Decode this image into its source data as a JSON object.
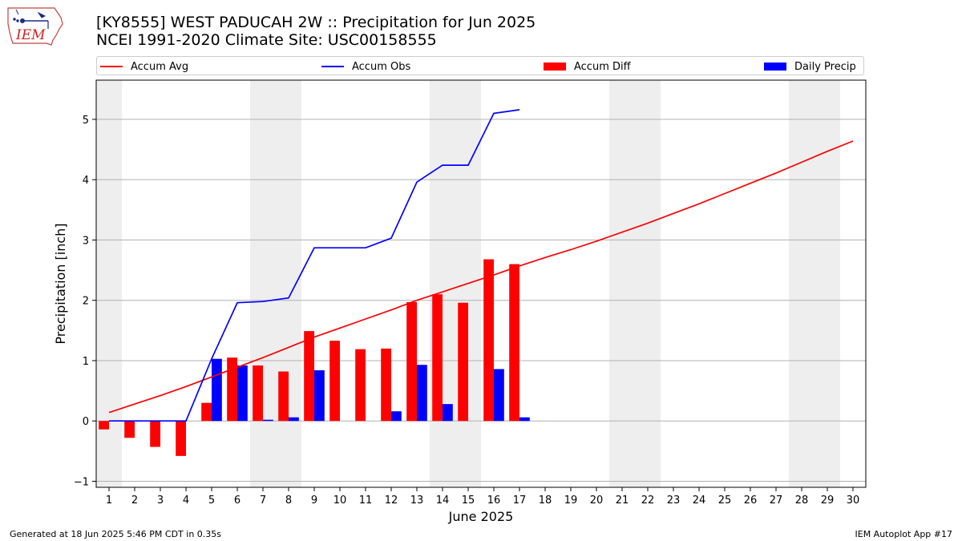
{
  "title": {
    "line1": "[KY8555] WEST PADUCAH 2W :: Precipitation for Jun 2025",
    "line2": "NCEI 1991-2020 Climate Site: USC00158555"
  },
  "logo": {
    "text": "IEM",
    "icon": "iowa-state-outline-logo-icon"
  },
  "legend": {
    "items": [
      {
        "label": "Accum Avg",
        "color": "#ff0000",
        "kind": "line"
      },
      {
        "label": "Accum Obs",
        "color": "#0000ff",
        "kind": "line"
      },
      {
        "label": "Accum Diff",
        "color": "#ff0000",
        "kind": "box"
      },
      {
        "label": "Daily Precip",
        "color": "#0000ff",
        "kind": "box"
      }
    ]
  },
  "footer": {
    "left": "Generated at 18 Jun 2025 5:46 PM CDT in 0.35s",
    "right": "IEM Autoplot App #17"
  },
  "chart_data": {
    "type": "bar",
    "xlabel": "June 2025",
    "ylabel": "Precipitation [inch]",
    "xlim": [
      0.5,
      30.5
    ],
    "ylim": [
      -1.1,
      5.65
    ],
    "x_ticks": [
      1,
      2,
      3,
      4,
      5,
      6,
      7,
      8,
      9,
      10,
      11,
      12,
      13,
      14,
      15,
      16,
      17,
      18,
      19,
      20,
      21,
      22,
      23,
      24,
      25,
      26,
      27,
      28,
      29,
      30
    ],
    "y_ticks": [
      -1,
      0,
      1,
      2,
      3,
      4,
      5
    ],
    "grid": "y",
    "legend_position": "top",
    "weekend_shading": [
      [
        0.5,
        1.5
      ],
      [
        6.5,
        8.5
      ],
      [
        13.5,
        15.5
      ],
      [
        20.5,
        22.5
      ],
      [
        27.5,
        29.5
      ]
    ],
    "series": [
      {
        "name": "Accum Avg",
        "kind": "line",
        "color": "#ff0000",
        "x": [
          1,
          2,
          3,
          4,
          5,
          6,
          7,
          8,
          9,
          10,
          11,
          12,
          13,
          14,
          15,
          16,
          17,
          18,
          19,
          20,
          21,
          22,
          23,
          24,
          25,
          26,
          27,
          28,
          29,
          30
        ],
        "values": [
          0.14,
          0.28,
          0.42,
          0.57,
          0.73,
          0.89,
          1.05,
          1.22,
          1.39,
          1.54,
          1.69,
          1.84,
          2.0,
          2.14,
          2.28,
          2.42,
          2.57,
          2.71,
          2.84,
          2.98,
          3.13,
          3.28,
          3.44,
          3.6,
          3.77,
          3.94,
          4.11,
          4.29,
          4.47,
          4.64
        ]
      },
      {
        "name": "Accum Obs",
        "kind": "line",
        "color": "#0000ff",
        "x": [
          1,
          2,
          3,
          4,
          5,
          6,
          7,
          8,
          9,
          10,
          11,
          12,
          13,
          14,
          15,
          16,
          17
        ],
        "values": [
          0,
          0,
          0,
          0,
          1.03,
          1.96,
          1.98,
          2.04,
          2.87,
          2.87,
          2.87,
          3.03,
          3.96,
          4.24,
          4.24,
          5.1,
          5.16
        ]
      },
      {
        "name": "Accum Diff",
        "kind": "bar",
        "color": "#ff0000",
        "offset": "left",
        "x": [
          1,
          2,
          3,
          4,
          5,
          6,
          7,
          8,
          9,
          10,
          11,
          12,
          13,
          14,
          15,
          16,
          17
        ],
        "values": [
          -0.14,
          -0.28,
          -0.43,
          -0.58,
          0.3,
          1.05,
          0.92,
          0.82,
          1.49,
          1.33,
          1.19,
          1.2,
          1.97,
          2.1,
          1.96,
          2.68,
          2.6
        ]
      },
      {
        "name": "Daily Precip",
        "kind": "bar",
        "color": "#0000ff",
        "offset": "right",
        "x": [
          1,
          2,
          3,
          4,
          5,
          6,
          7,
          8,
          9,
          10,
          11,
          12,
          13,
          14,
          15,
          16,
          17
        ],
        "values": [
          0,
          0,
          0,
          0,
          1.03,
          0.92,
          0.02,
          0.06,
          0.84,
          0,
          0,
          0.16,
          0.93,
          0.28,
          0,
          0.86,
          0.06
        ]
      }
    ]
  }
}
